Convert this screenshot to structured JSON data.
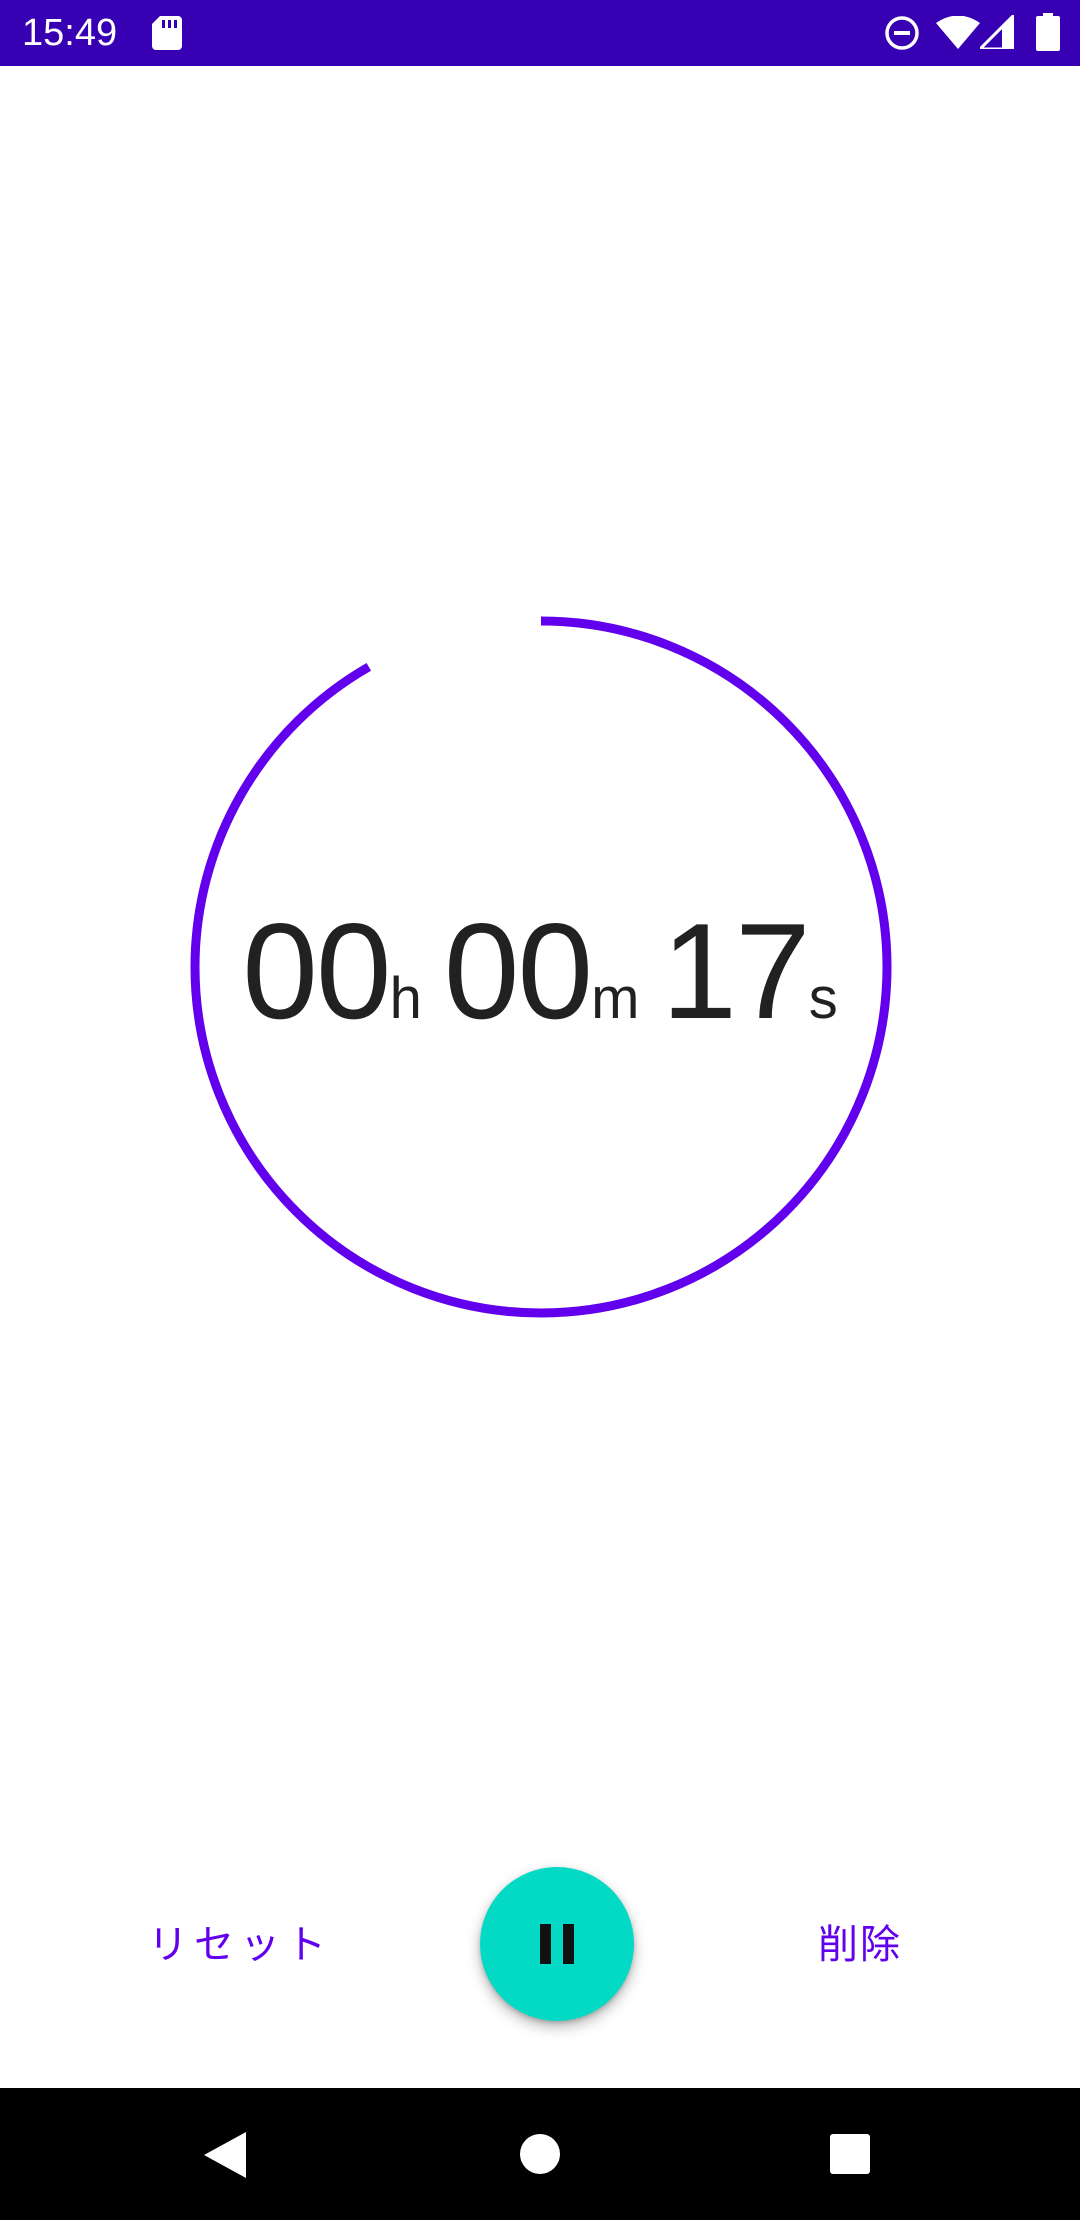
{
  "status_bar": {
    "time": "15:49",
    "icons": [
      "sd-card-icon",
      "do-not-disturb-icon",
      "wifi-icon",
      "cell-signal-icon",
      "battery-icon"
    ],
    "background_color": "#3700b3"
  },
  "timer": {
    "hours": "00",
    "hours_unit": "h",
    "minutes": "00",
    "minutes_unit": "m",
    "seconds": "17",
    "seconds_unit": "s",
    "ring_progress_fraction": 0.917,
    "ring_color": "#6200ee"
  },
  "controls": {
    "reset_label": "リセット",
    "delete_label": "削除",
    "pause_icon": "pause-icon",
    "fab_color": "#03dac5",
    "accent_color": "#6200ee"
  },
  "nav_bar": {
    "icons": [
      "back-icon",
      "home-icon",
      "recents-icon"
    ]
  }
}
